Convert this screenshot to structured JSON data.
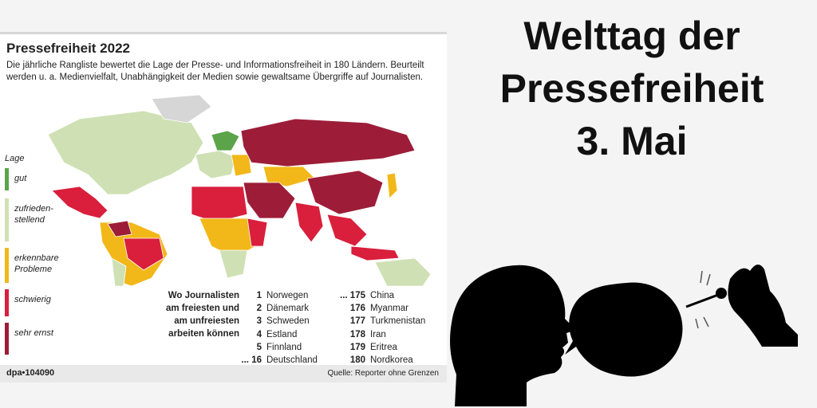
{
  "infographic": {
    "title": "Pressefreiheit 2022",
    "subtitle": "Die jährliche Rangliste bewertet die Lage der Presse- und Informationsfreiheit in 180 Ländern. Beurteilt werden u. a. Medienvielfalt, Unabhängigkeit der Medien sowie gewaltsame Übergriffe auf Journalisten.",
    "legend": {
      "heading": "Lage",
      "items": [
        {
          "label": "gut",
          "color": "#5ba44a"
        },
        {
          "label": "zufrieden-stellend",
          "color": "#cfe1b4"
        },
        {
          "label": "erkennbare Probleme",
          "color": "#f2b718"
        },
        {
          "label": "schwierig",
          "color": "#d91f3c"
        },
        {
          "label": "sehr ernst",
          "color": "#9d1d38"
        }
      ]
    },
    "ranking": {
      "heading": "Wo Journalisten am freiesten und am unfreiesten arbeiten können",
      "top": [
        {
          "rank": "1",
          "country": "Norwegen"
        },
        {
          "rank": "2",
          "country": "Dänemark"
        },
        {
          "rank": "3",
          "country": "Schweden"
        },
        {
          "rank": "4",
          "country": "Estland"
        },
        {
          "rank": "5",
          "country": "Finnland"
        },
        {
          "rank": "... 16",
          "country": "Deutschland"
        }
      ],
      "bottom": [
        {
          "rank": "... 175",
          "country": "China"
        },
        {
          "rank": "176",
          "country": "Myanmar"
        },
        {
          "rank": "177",
          "country": "Turkmenistan"
        },
        {
          "rank": "178",
          "country": "Iran"
        },
        {
          "rank": "179",
          "country": "Eritrea"
        },
        {
          "rank": "180",
          "country": "Nordkorea"
        }
      ]
    },
    "credit": "dpa•104090",
    "source": "Quelle: Reporter ohne Grenzen"
  },
  "headline": {
    "line1": "Welttag der",
    "line2": "Pressefreiheit",
    "line3": "3. Mai"
  }
}
